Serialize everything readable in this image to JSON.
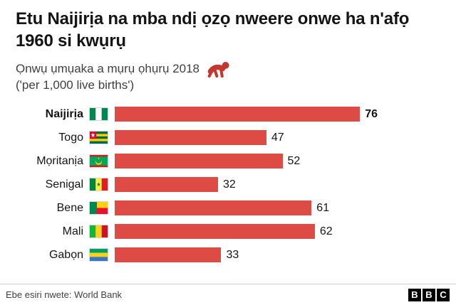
{
  "header": {
    "title": "Etu Naijirịa na mba ndị ọzọ nweere onwe ha n'afọ 1960 si kwụrụ",
    "subtitle": "Ọnwụ ụmụaka a mụrụ ọhụrụ 2018",
    "subtitle_note": "('per 1,000 live births')",
    "baby_icon": "crawling-baby-icon",
    "baby_icon_color": "#c4372e"
  },
  "chart_data": {
    "type": "bar",
    "orientation": "horizontal",
    "title": "Ọnwụ ụmụaka a mụrụ ọhụrụ 2018 ('per 1,000 live births')",
    "categories": [
      "Naijirịa",
      "Togo",
      "Mọritanịa",
      "Senigal",
      "Bene",
      "Mali",
      "Gabọn"
    ],
    "values": [
      76,
      47,
      52,
      32,
      61,
      62,
      33
    ],
    "flags": [
      "nigeria",
      "togo",
      "mauritania",
      "senegal",
      "benin",
      "mali",
      "gabon"
    ],
    "bar_color": "#dd4b44",
    "highlight_index": 0,
    "value_labels": true,
    "grid": false,
    "legend": "none",
    "xlim": [
      0,
      80
    ]
  },
  "footer": {
    "source": "Ebe esiri nwete: World Bank",
    "bbc_letters": [
      "B",
      "B",
      "C"
    ]
  }
}
